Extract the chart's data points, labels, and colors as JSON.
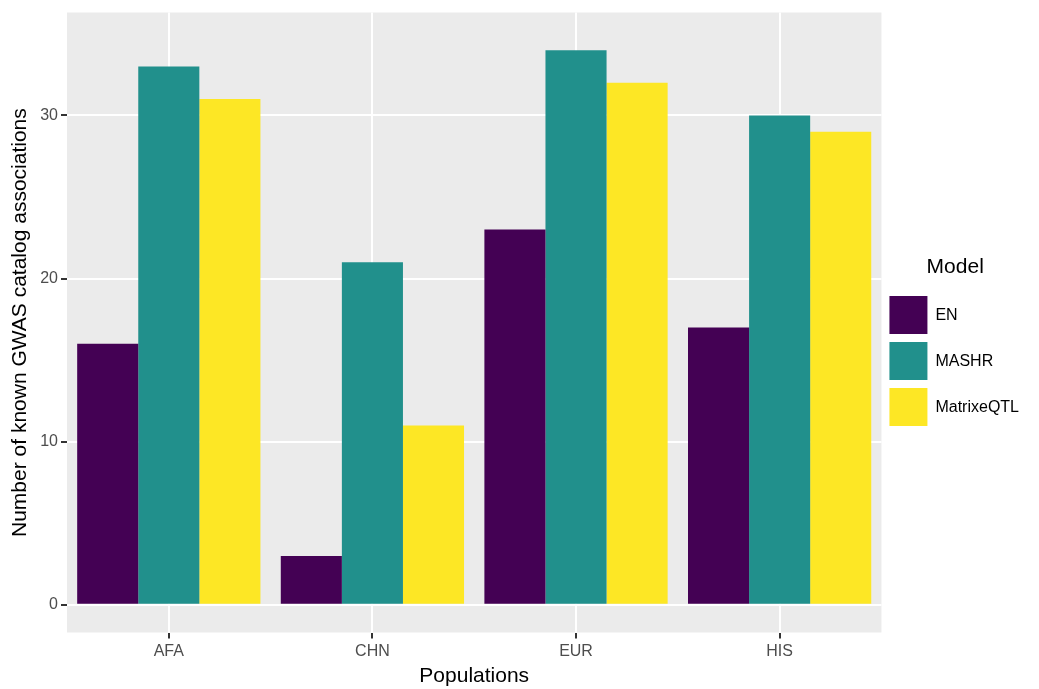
{
  "chart_data": {
    "type": "bar",
    "xlabel": "Populations",
    "ylabel": "Number of known GWAS catalog associations",
    "legend_title": "Model",
    "categories": [
      "AFA",
      "CHN",
      "EUR",
      "HIS"
    ],
    "series": [
      {
        "name": "EN",
        "color": "#440154",
        "values": [
          16,
          3,
          23,
          17
        ]
      },
      {
        "name": "MASHR",
        "color": "#21908c",
        "values": [
          33,
          21,
          34,
          30
        ]
      },
      {
        "name": "MatrixeQTL",
        "color": "#fde725",
        "values": [
          31,
          11,
          32,
          29
        ]
      }
    ],
    "ylim": [
      -1.7,
      36.3
    ],
    "yticks": [
      0,
      10,
      20,
      30
    ],
    "grid": true,
    "legend": "right"
  }
}
